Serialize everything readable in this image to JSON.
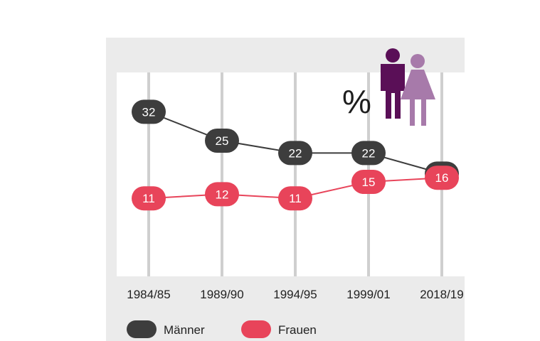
{
  "chart_data": {
    "type": "line",
    "categories": [
      "1984/85",
      "1989/90",
      "1994/95",
      "1999/01",
      "2018/19"
    ],
    "series": [
      {
        "name": "Männer",
        "values": [
          32,
          25,
          22,
          22,
          17
        ],
        "color": "#3d3d3d"
      },
      {
        "name": "Frauen",
        "values": [
          11,
          12,
          11,
          15,
          16
        ],
        "color": "#e8445a"
      }
    ],
    "unit_symbol": "%",
    "icon": "man-woman-icon",
    "icon_colors": {
      "man": "#5a0f57",
      "woman": "#a77aaa"
    },
    "legend_position": "bottom",
    "grid": "vertical"
  }
}
